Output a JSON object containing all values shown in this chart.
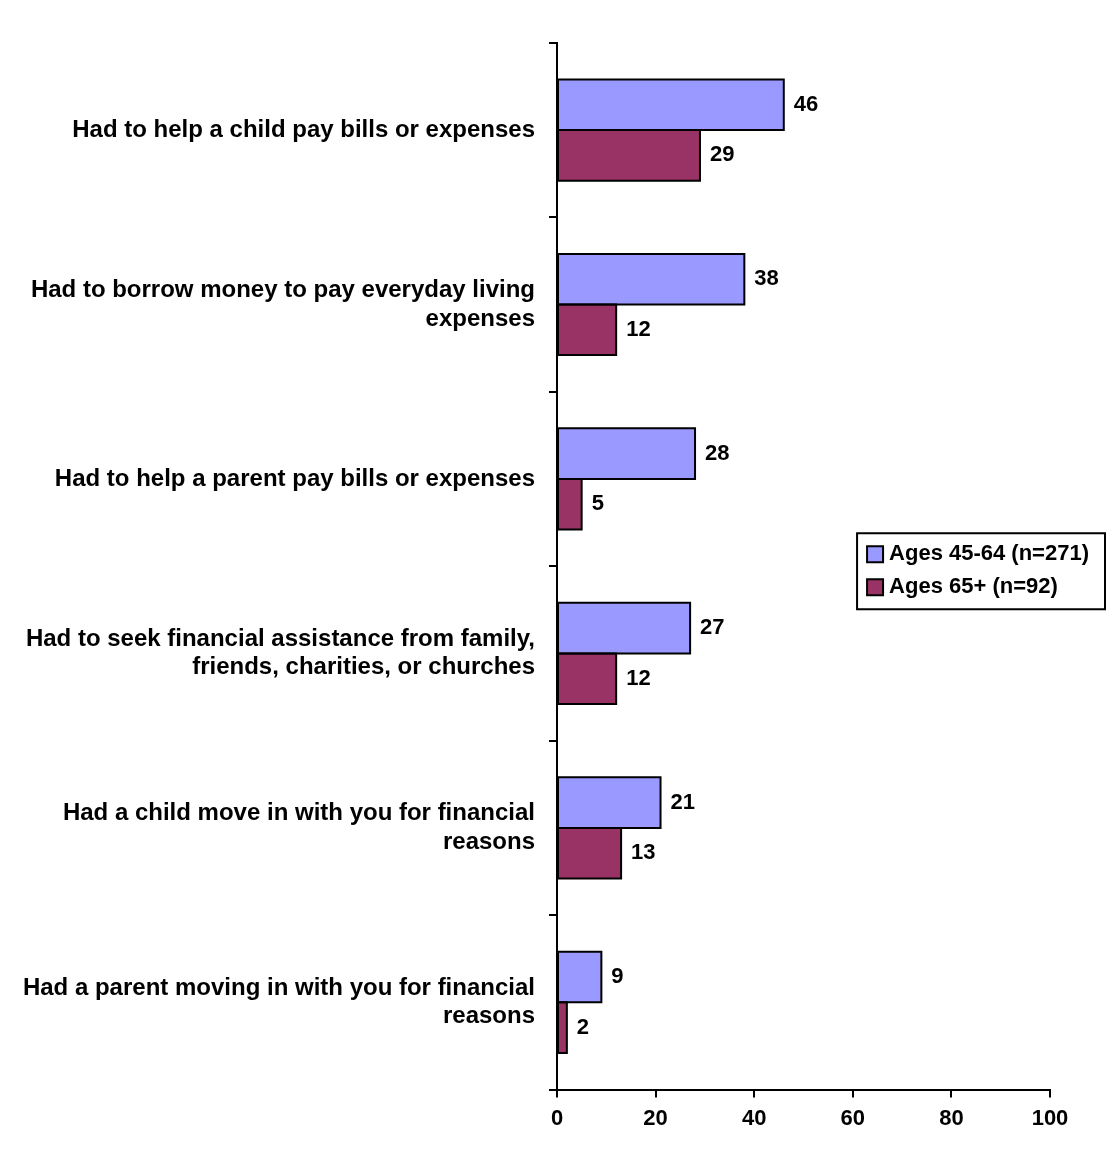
{
  "chart_data": {
    "type": "bar",
    "orientation": "horizontal",
    "categories": [
      "Had to help a child pay bills or expenses",
      "Had to borrow money to pay everyday living expenses",
      "Had to help a parent pay bills or expenses",
      "Had to seek financial assistance from family, friends, charities, or churches",
      "Had a child move in with you for financial reasons",
      "Had a parent moving in with you for financial reasons"
    ],
    "series": [
      {
        "name": "Ages 45-64 (n=271)",
        "color": "#9999ff",
        "values": [
          46,
          38,
          28,
          27,
          21,
          9
        ]
      },
      {
        "name": "Ages 65+ (n=92)",
        "color": "#993366",
        "values": [
          29,
          12,
          5,
          12,
          13,
          2
        ]
      }
    ],
    "xlim": [
      0,
      100
    ],
    "xticks": [
      0,
      20,
      40,
      60,
      80,
      100
    ],
    "data_labels": true,
    "legend": "right",
    "grid": false
  }
}
